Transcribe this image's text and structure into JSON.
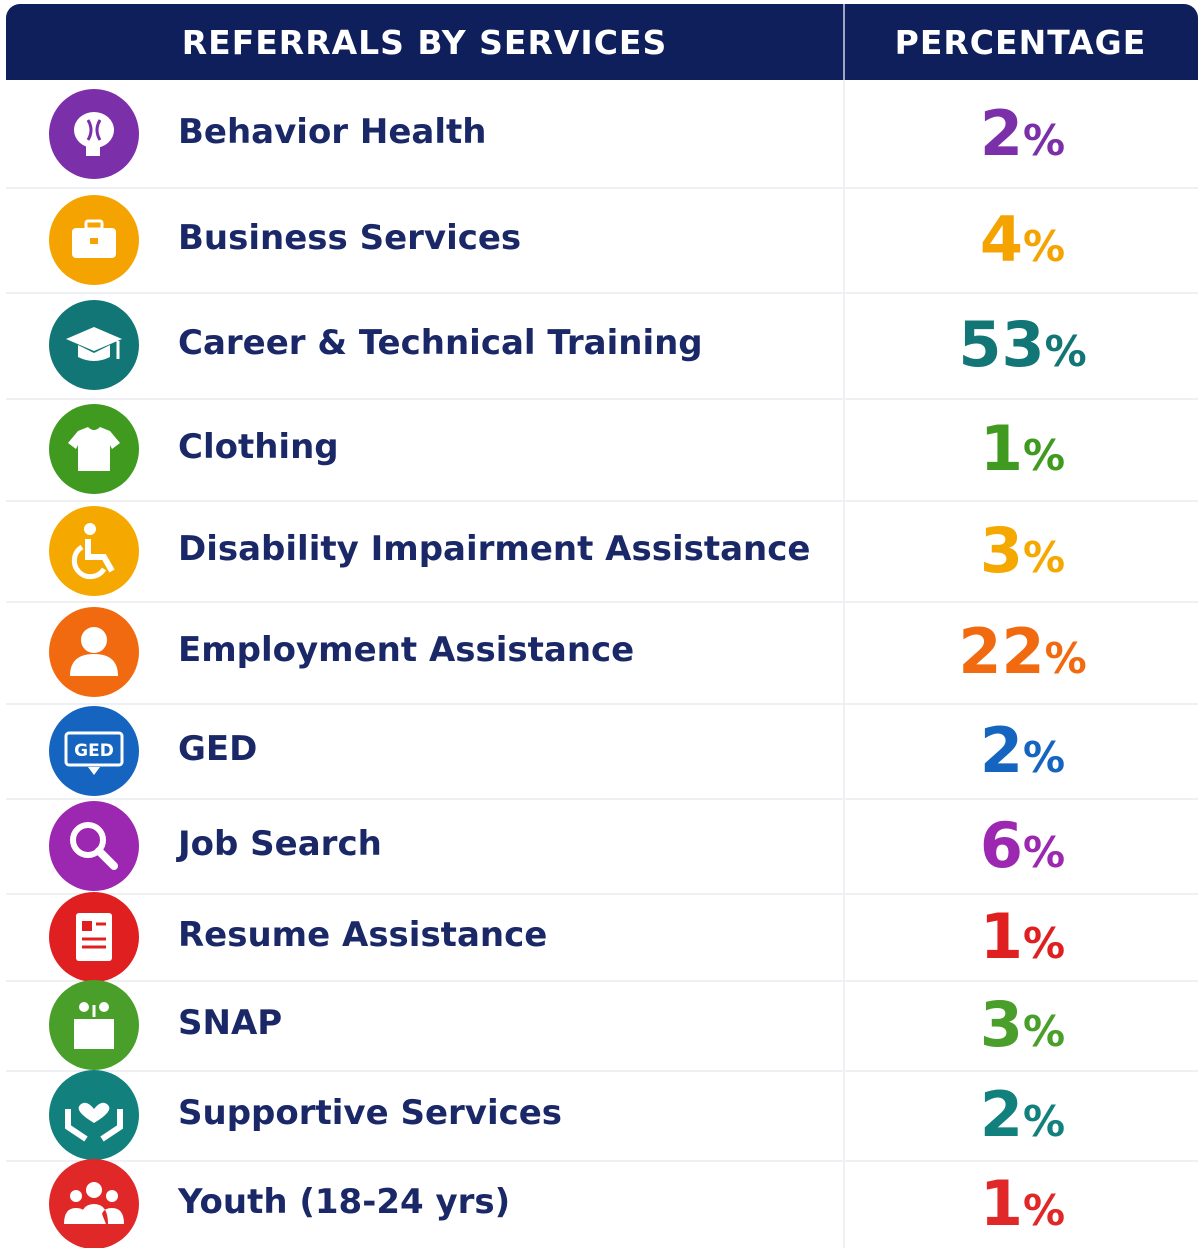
{
  "table": {
    "header": [
      "REFERRALS BY SERVICES",
      "PERCENTAGE"
    ],
    "rows": [
      {
        "label": "Behavior Health",
        "percent": "2%",
        "color": "#7b2fa8"
      },
      {
        "label": "Business Services",
        "percent": "4%",
        "color": "#f5a300"
      },
      {
        "label": "Career & Technical Training",
        "percent": "53%",
        "color": "#137676"
      },
      {
        "label": "Clothing",
        "percent": "1%",
        "color": "#3f9a1f"
      },
      {
        "label": "Disability Impairment Assistance",
        "percent": "3%",
        "color": "#f5a800"
      },
      {
        "label": "Employment Assistance",
        "percent": "22%",
        "color": "#f26a10"
      },
      {
        "label": "GED",
        "percent": "2%",
        "color": "#1565c0",
        "icon_text": "GED"
      },
      {
        "label": "Job Search",
        "percent": "6%",
        "color": "#9c27b0"
      },
      {
        "label": "Resume Assistance",
        "percent": "1%",
        "color": "#e02020"
      },
      {
        "label": "SNAP",
        "percent": "3%",
        "color": "#4a9e2a"
      },
      {
        "label": "Supportive Services",
        "percent": "2%",
        "color": "#12807d"
      },
      {
        "label": "Youth (18-24 yrs)",
        "percent": "1%",
        "color": "#e02828"
      }
    ]
  }
}
